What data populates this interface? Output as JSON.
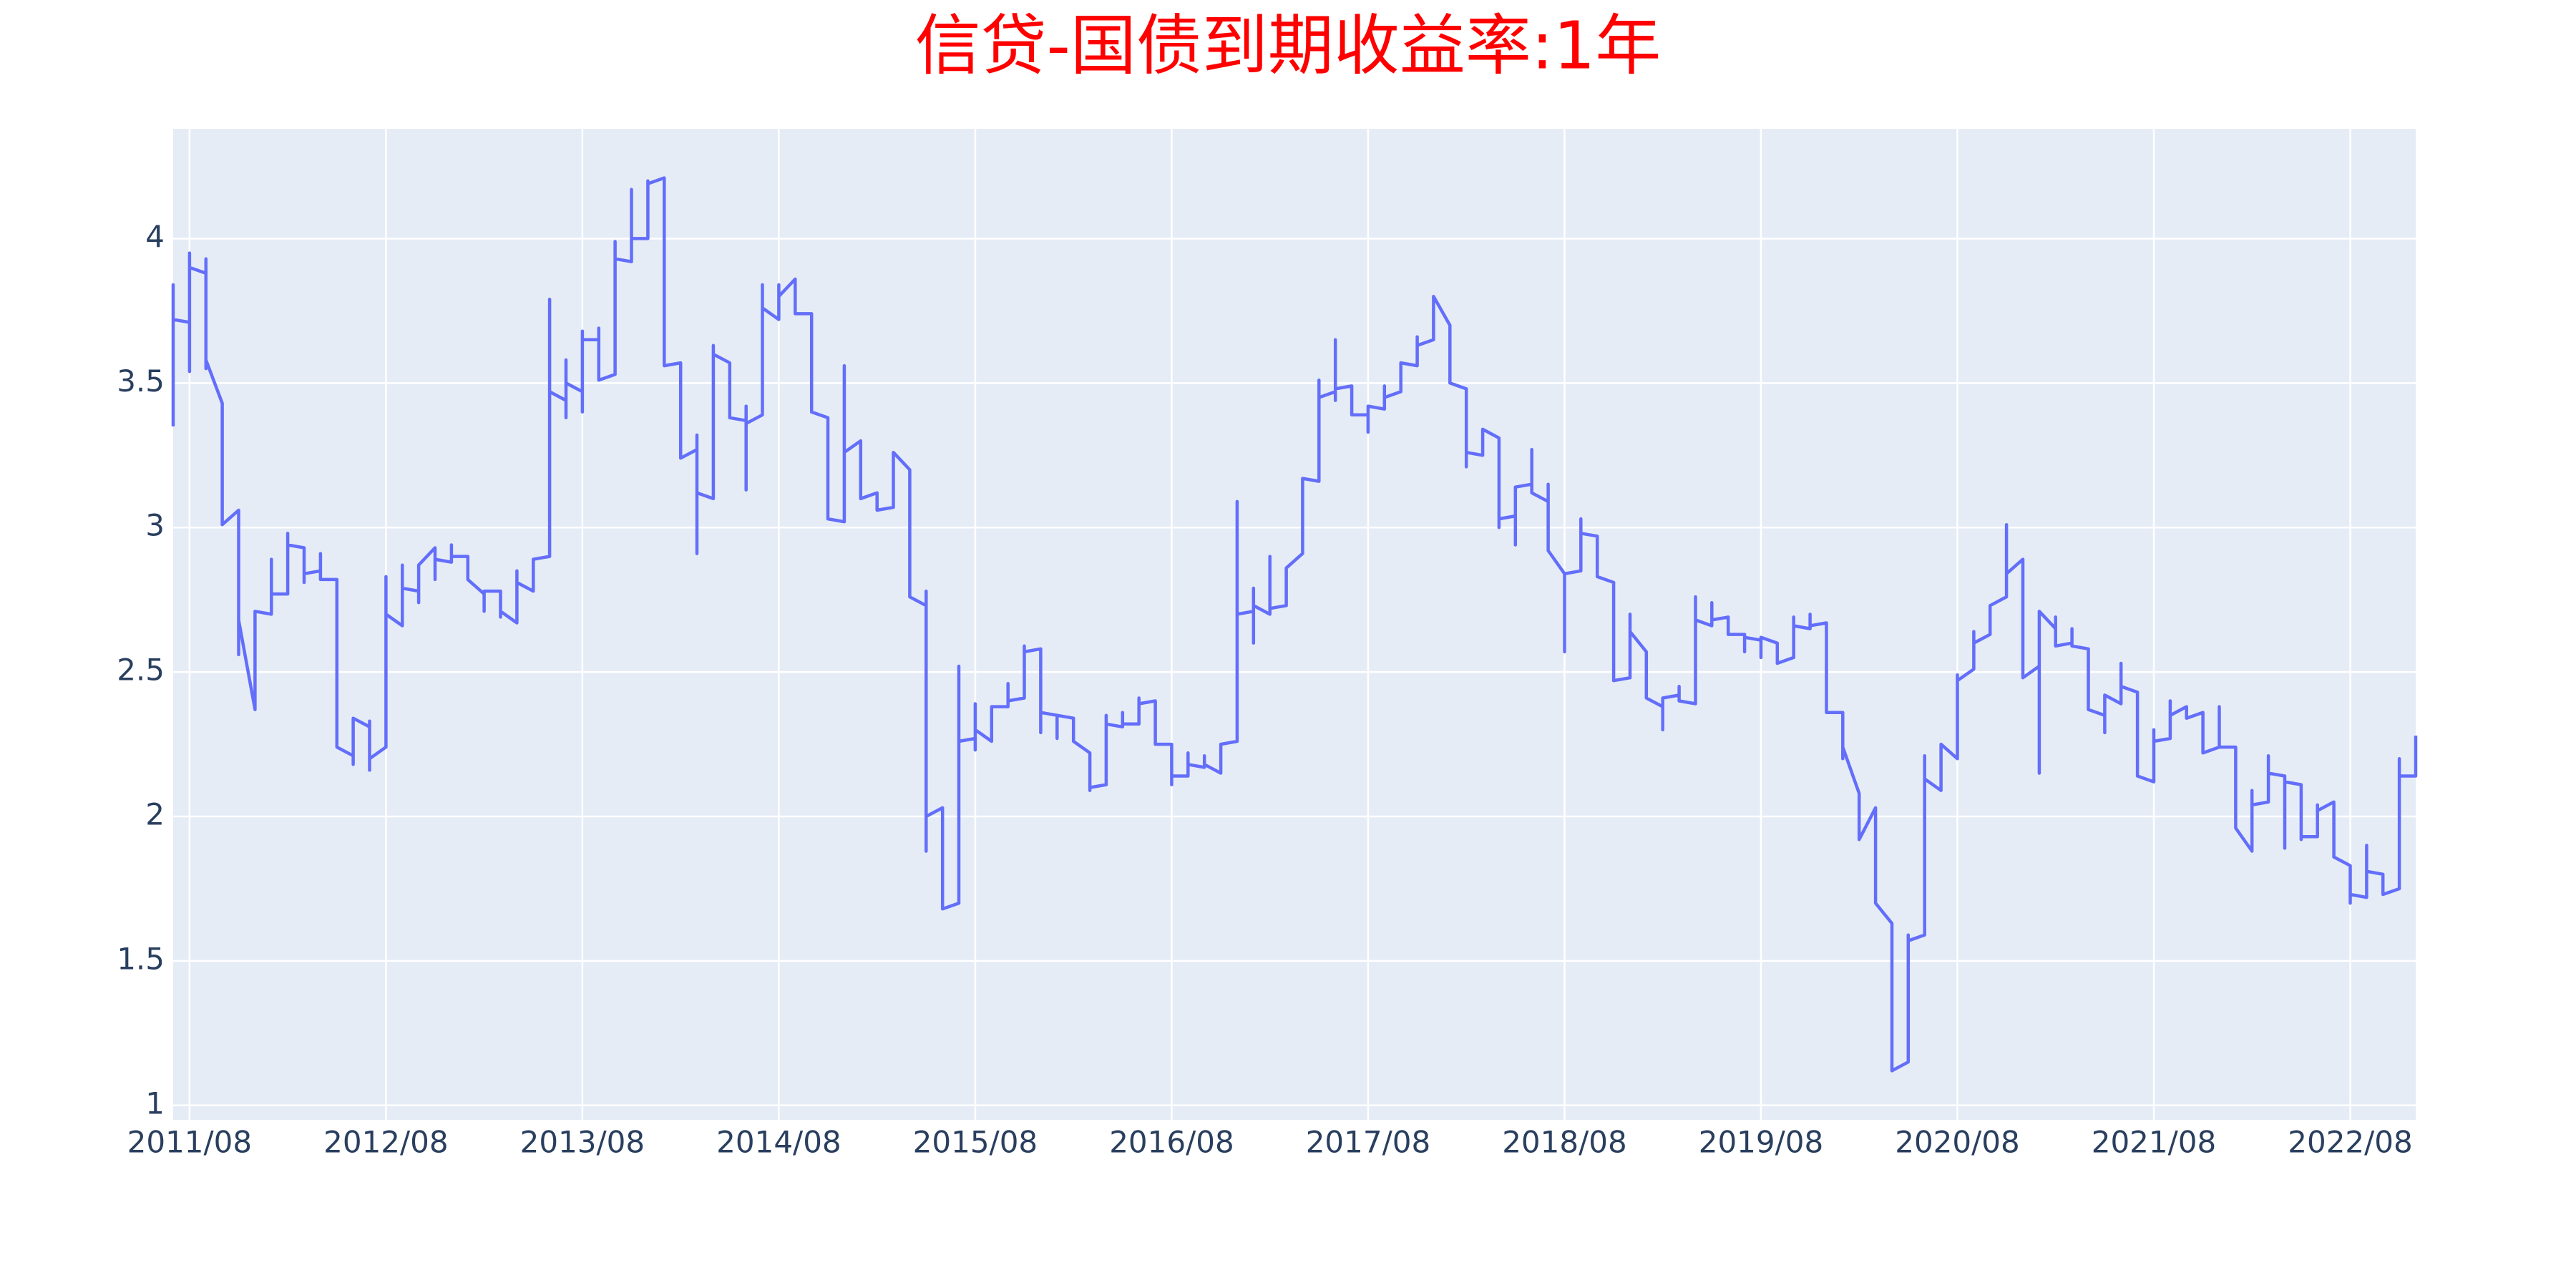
{
  "chart_data": {
    "type": "line",
    "title": "信贷-国债到期收益率:1年",
    "x": [
      "2011/07",
      "2011/07",
      "2011/07",
      "2011/08",
      "2011/08",
      "2011/08",
      "2011/08",
      "2011/09",
      "2011/09",
      "2011/09",
      "2011/09",
      "2011/10",
      "2011/10",
      "2011/10",
      "2011/11",
      "2011/11",
      "2011/11",
      "2011/12",
      "2011/12",
      "2012/01",
      "2012/01",
      "2012/01",
      "2012/02",
      "2012/02",
      "2012/02",
      "2012/03",
      "2012/03",
      "2012/03",
      "2012/04",
      "2012/04",
      "2012/04",
      "2012/05",
      "2012/05",
      "2012/06",
      "2012/06",
      "2012/06",
      "2012/07",
      "2012/07",
      "2012/07",
      "2012/07",
      "2012/08",
      "2012/08",
      "2012/08",
      "2012/09",
      "2012/09",
      "2012/09",
      "2012/10",
      "2012/10",
      "2012/10",
      "2012/11",
      "2012/11",
      "2012/11",
      "2012/12",
      "2012/12",
      "2012/12",
      "2013/01",
      "2013/01",
      "2013/01",
      "2013/02",
      "2013/02",
      "2013/02",
      "2013/03",
      "2013/03",
      "2013/03",
      "2013/04",
      "2013/04",
      "2013/04",
      "2013/05",
      "2013/05",
      "2013/06",
      "2013/06",
      "2013/06",
      "2013/07",
      "2013/07",
      "2013/07",
      "2013/07",
      "2013/08",
      "2013/08",
      "2013/08",
      "2013/08",
      "2013/09",
      "2013/09",
      "2013/09",
      "2013/10",
      "2013/10",
      "2013/10",
      "2013/11",
      "2013/11",
      "2013/11",
      "2013/12",
      "2013/12",
      "2013/12",
      "2014/01",
      "2014/01",
      "2014/02",
      "2014/02",
      "2014/03",
      "2014/03",
      "2014/03",
      "2014/03",
      "2014/04",
      "2014/04",
      "2014/04",
      "2014/05",
      "2014/05",
      "2014/06",
      "2014/06",
      "2014/06",
      "2014/06",
      "2014/07",
      "2014/07",
      "2014/07",
      "2014/08",
      "2014/08",
      "2014/08",
      "2014/09",
      "2014/09",
      "2014/10",
      "2014/10",
      "2014/11",
      "2014/11",
      "2014/12",
      "2014/12",
      "2014/12",
      "2015/01",
      "2015/01",
      "2015/02",
      "2015/02",
      "2015/03",
      "2015/03",
      "2015/04",
      "2015/04",
      "2015/05",
      "2015/05",
      "2015/05",
      "2015/05",
      "2015/06",
      "2015/06",
      "2015/07",
      "2015/07",
      "2015/07",
      "2015/08",
      "2015/08",
      "2015/08",
      "2015/08",
      "2015/09",
      "2015/09",
      "2015/10",
      "2015/10",
      "2015/10",
      "2015/11",
      "2015/11",
      "2015/11",
      "2015/12",
      "2015/12",
      "2015/12",
      "2016/01",
      "2016/01",
      "2016/01",
      "2016/02",
      "2016/02",
      "2016/03",
      "2016/03",
      "2016/03",
      "2016/04",
      "2016/04",
      "2016/04",
      "2016/05",
      "2016/05",
      "2016/05",
      "2016/06",
      "2016/06",
      "2016/06",
      "2016/07",
      "2016/07",
      "2016/08",
      "2016/08",
      "2016/08",
      "2016/09",
      "2016/09",
      "2016/09",
      "2016/10",
      "2016/10",
      "2016/10",
      "2016/11",
      "2016/11",
      "2016/12",
      "2016/12",
      "2016/12",
      "2017/01",
      "2017/01",
      "2017/01",
      "2017/01",
      "2017/02",
      "2017/02",
      "2017/02",
      "2017/03",
      "2017/03",
      "2017/04",
      "2017/04",
      "2017/05",
      "2017/05",
      "2017/05",
      "2017/06",
      "2017/06",
      "2017/06",
      "2017/06",
      "2017/07",
      "2017/07",
      "2017/08",
      "2017/08",
      "2017/08",
      "2017/09",
      "2017/09",
      "2017/09",
      "2017/10",
      "2017/10",
      "2017/11",
      "2017/11",
      "2017/11",
      "2017/12",
      "2017/12",
      "2018/01",
      "2018/01",
      "2018/02",
      "2018/02",
      "2018/02",
      "2018/03",
      "2018/03",
      "2018/04",
      "2018/04",
      "2018/04",
      "2018/05",
      "2018/05",
      "2018/05",
      "2018/06",
      "2018/06",
      "2018/06",
      "2018/07",
      "2018/07",
      "2018/07",
      "2018/08",
      "2018/08",
      "2018/08",
      "2018/09",
      "2018/09",
      "2018/09",
      "2018/10",
      "2018/10",
      "2018/11",
      "2018/11",
      "2018/12",
      "2018/12",
      "2018/12",
      "2019/01",
      "2019/01",
      "2019/02",
      "2019/02",
      "2019/02",
      "2019/03",
      "2019/03",
      "2019/03",
      "2019/04",
      "2019/04",
      "2019/04",
      "2019/05",
      "2019/05",
      "2019/05",
      "2019/06",
      "2019/06",
      "2019/07",
      "2019/07",
      "2019/07",
      "2019/08",
      "2019/08",
      "2019/08",
      "2019/09",
      "2019/09",
      "2019/10",
      "2019/10",
      "2019/10",
      "2019/11",
      "2019/11",
      "2019/11",
      "2019/12",
      "2019/12",
      "2020/01",
      "2020/01",
      "2020/01",
      "2020/02",
      "2020/02",
      "2020/03",
      "2020/03",
      "2020/04",
      "2020/04",
      "2020/05",
      "2020/05",
      "2020/05",
      "2020/06",
      "2020/06",
      "2020/06",
      "2020/07",
      "2020/07",
      "2020/08",
      "2020/08",
      "2020/08",
      "2020/09",
      "2020/09",
      "2020/09",
      "2020/10",
      "2020/10",
      "2020/11",
      "2020/11",
      "2020/11",
      "2020/12",
      "2020/12",
      "2021/01",
      "2021/01",
      "2021/01",
      "2021/02",
      "2021/02",
      "2021/02",
      "2021/03",
      "2021/03",
      "2021/03",
      "2021/04",
      "2021/04",
      "2021/05",
      "2021/05",
      "2021/05",
      "2021/06",
      "2021/06",
      "2021/06",
      "2021/07",
      "2021/07",
      "2021/08",
      "2021/08",
      "2021/08",
      "2021/09",
      "2021/09",
      "2021/09",
      "2021/10",
      "2021/10",
      "2021/11",
      "2021/11",
      "2021/12",
      "2021/12",
      "2021/12",
      "2022/01",
      "2022/01",
      "2022/02",
      "2022/02",
      "2022/02",
      "2022/03",
      "2022/03",
      "2022/03",
      "2022/04",
      "2022/04",
      "2022/04",
      "2022/05",
      "2022/05",
      "2022/05",
      "2022/06",
      "2022/06",
      "2022/06",
      "2022/07",
      "2022/07",
      "2022/08",
      "2022/08",
      "2022/08",
      "2022/09",
      "2022/09",
      "2022/09",
      "2022/10",
      "2022/10",
      "2022/11",
      "2022/11",
      "2022/11",
      "2022/12",
      "2022/12"
    ],
    "series": [
      {
        "color": "#636efa",
        "values": [
          3.35,
          3.84,
          3.72,
          3.71,
          3.54,
          3.95,
          3.9,
          3.88,
          3.93,
          3.55,
          3.58,
          3.43,
          3.09,
          3.01,
          3.06,
          2.56,
          2.68,
          2.37,
          2.71,
          2.7,
          2.89,
          2.77,
          2.77,
          2.98,
          2.94,
          2.93,
          2.81,
          2.84,
          2.85,
          2.91,
          2.82,
          2.82,
          2.24,
          2.21,
          2.18,
          2.34,
          2.31,
          2.16,
          2.33,
          2.2,
          2.24,
          2.83,
          2.7,
          2.66,
          2.87,
          2.79,
          2.78,
          2.74,
          2.87,
          2.93,
          2.82,
          2.89,
          2.88,
          2.94,
          2.9,
          2.9,
          2.83,
          2.82,
          2.77,
          2.71,
          2.78,
          2.78,
          2.69,
          2.71,
          2.67,
          2.85,
          2.81,
          2.78,
          2.89,
          2.9,
          3.79,
          3.47,
          3.44,
          3.58,
          3.38,
          3.5,
          3.47,
          3.4,
          3.68,
          3.65,
          3.65,
          3.69,
          3.51,
          3.53,
          3.99,
          3.93,
          3.92,
          4.17,
          4.0,
          4.0,
          4.2,
          4.19,
          4.21,
          3.56,
          3.57,
          3.24,
          3.27,
          3.32,
          2.91,
          3.12,
          3.1,
          3.63,
          3.6,
          3.57,
          3.38,
          3.37,
          3.42,
          3.13,
          3.36,
          3.39,
          3.84,
          3.76,
          3.72,
          3.84,
          3.8,
          3.86,
          3.74,
          3.74,
          3.4,
          3.38,
          3.03,
          3.02,
          3.56,
          3.26,
          3.3,
          3.1,
          3.12,
          3.06,
          3.07,
          3.26,
          3.2,
          2.76,
          2.73,
          2.78,
          1.88,
          2.0,
          2.03,
          1.68,
          1.7,
          2.52,
          2.26,
          2.27,
          2.23,
          2.39,
          2.3,
          2.26,
          2.38,
          2.38,
          2.46,
          2.4,
          2.41,
          2.59,
          2.57,
          2.58,
          2.29,
          2.36,
          2.35,
          2.27,
          2.35,
          2.34,
          2.26,
          2.22,
          2.09,
          2.1,
          2.11,
          2.35,
          2.32,
          2.31,
          2.36,
          2.32,
          2.32,
          2.41,
          2.39,
          2.4,
          2.25,
          2.25,
          2.11,
          2.14,
          2.14,
          2.22,
          2.18,
          2.17,
          2.21,
          2.18,
          2.15,
          2.25,
          2.26,
          3.09,
          2.7,
          2.71,
          2.79,
          2.6,
          2.73,
          2.7,
          2.9,
          2.72,
          2.73,
          2.86,
          2.91,
          3.17,
          3.16,
          3.51,
          3.45,
          3.47,
          3.65,
          3.44,
          3.48,
          3.49,
          3.39,
          3.39,
          3.33,
          3.42,
          3.41,
          3.49,
          3.45,
          3.47,
          3.57,
          3.56,
          3.66,
          3.63,
          3.65,
          3.8,
          3.7,
          3.5,
          3.48,
          3.21,
          3.26,
          3.25,
          3.34,
          3.31,
          3.0,
          3.03,
          3.04,
          2.94,
          3.14,
          3.15,
          3.27,
          3.12,
          3.09,
          3.15,
          2.92,
          2.84,
          2.57,
          2.84,
          2.85,
          3.03,
          2.98,
          2.97,
          2.83,
          2.81,
          2.47,
          2.48,
          2.7,
          2.64,
          2.57,
          2.41,
          2.38,
          2.3,
          2.41,
          2.42,
          2.45,
          2.4,
          2.39,
          2.76,
          2.68,
          2.66,
          2.74,
          2.68,
          2.69,
          2.63,
          2.63,
          2.57,
          2.62,
          2.61,
          2.55,
          2.62,
          2.6,
          2.53,
          2.55,
          2.69,
          2.66,
          2.65,
          2.7,
          2.66,
          2.67,
          2.36,
          2.36,
          2.2,
          2.24,
          2.08,
          1.92,
          2.03,
          1.7,
          1.63,
          1.12,
          1.15,
          1.59,
          1.57,
          1.59,
          2.21,
          2.13,
          2.09,
          2.25,
          2.2,
          2.49,
          2.47,
          2.51,
          2.64,
          2.6,
          2.63,
          2.73,
          2.76,
          3.01,
          2.84,
          2.89,
          2.48,
          2.52,
          2.15,
          2.71,
          2.65,
          2.69,
          2.59,
          2.6,
          2.65,
          2.59,
          2.58,
          2.37,
          2.35,
          2.29,
          2.42,
          2.39,
          2.53,
          2.45,
          2.43,
          2.14,
          2.12,
          2.3,
          2.26,
          2.27,
          2.4,
          2.35,
          2.38,
          2.34,
          2.36,
          2.22,
          2.24,
          2.38,
          2.24,
          2.24,
          1.96,
          1.88,
          2.09,
          2.04,
          2.05,
          2.21,
          2.15,
          2.14,
          1.89,
          2.12,
          2.11,
          1.92,
          1.93,
          1.93,
          2.04,
          2.02,
          2.05,
          1.86,
          1.83,
          1.7,
          1.73,
          1.72,
          1.9,
          1.81,
          1.8,
          1.73,
          1.75,
          2.2,
          2.14,
          2.14,
          2.28
        ]
      }
    ],
    "xlim": [
      "2011/07",
      "2022/12"
    ],
    "xticks": [
      "2011/08",
      "2012/08",
      "2013/08",
      "2014/08",
      "2015/08",
      "2016/08",
      "2017/08",
      "2018/08",
      "2019/08",
      "2020/08",
      "2021/08",
      "2022/08"
    ],
    "ylim": [
      0.95,
      4.38
    ],
    "yticks": [
      1,
      1.5,
      2,
      2.5,
      3,
      3.5,
      4
    ],
    "grid": true
  }
}
